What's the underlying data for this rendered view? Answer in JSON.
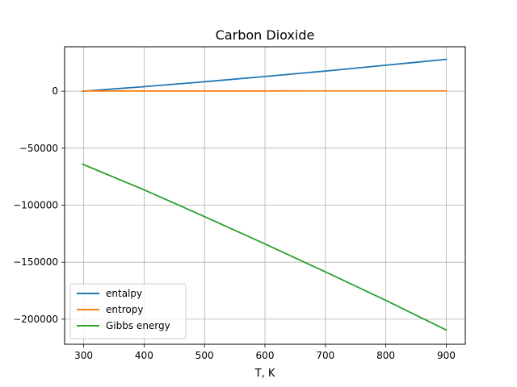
{
  "chart_data": {
    "type": "line",
    "title": "Carbon Dioxide",
    "xlabel": "T, K",
    "ylabel": "",
    "xlim": [
      268.5,
      931.5
    ],
    "ylim": [
      -222000,
      39000
    ],
    "xticks": [
      300,
      400,
      500,
      600,
      700,
      800,
      900
    ],
    "yticks": [
      0,
      -50000,
      -100000,
      -150000,
      -200000
    ],
    "xtick_labels": [
      "300",
      "400",
      "500",
      "600",
      "700",
      "800",
      "900"
    ],
    "ytick_labels": [
      "0",
      "−50000",
      "−100000",
      "−150000",
      "−200000"
    ],
    "grid": true,
    "legend_position": "lower-left",
    "series": [
      {
        "name": "entalpy",
        "color": "#1f77b4",
        "x": [
          298.15,
          400,
          500,
          600,
          700,
          800,
          900
        ],
        "y": [
          0,
          4000,
          8300,
          12900,
          17700,
          22800,
          28000
        ]
      },
      {
        "name": "entropy",
        "color": "#ff7f0e",
        "x": [
          298.15,
          400,
          500,
          600,
          700,
          800,
          900
        ],
        "y": [
          214,
          226,
          234,
          243,
          251,
          257,
          263
        ]
      },
      {
        "name": "Gibbs energy",
        "color": "#2ca02c",
        "x": [
          298.15,
          400,
          500,
          600,
          700,
          800,
          900
        ],
        "y": [
          -64000,
          -86500,
          -110000,
          -134000,
          -158500,
          -183500,
          -209500
        ]
      }
    ]
  }
}
